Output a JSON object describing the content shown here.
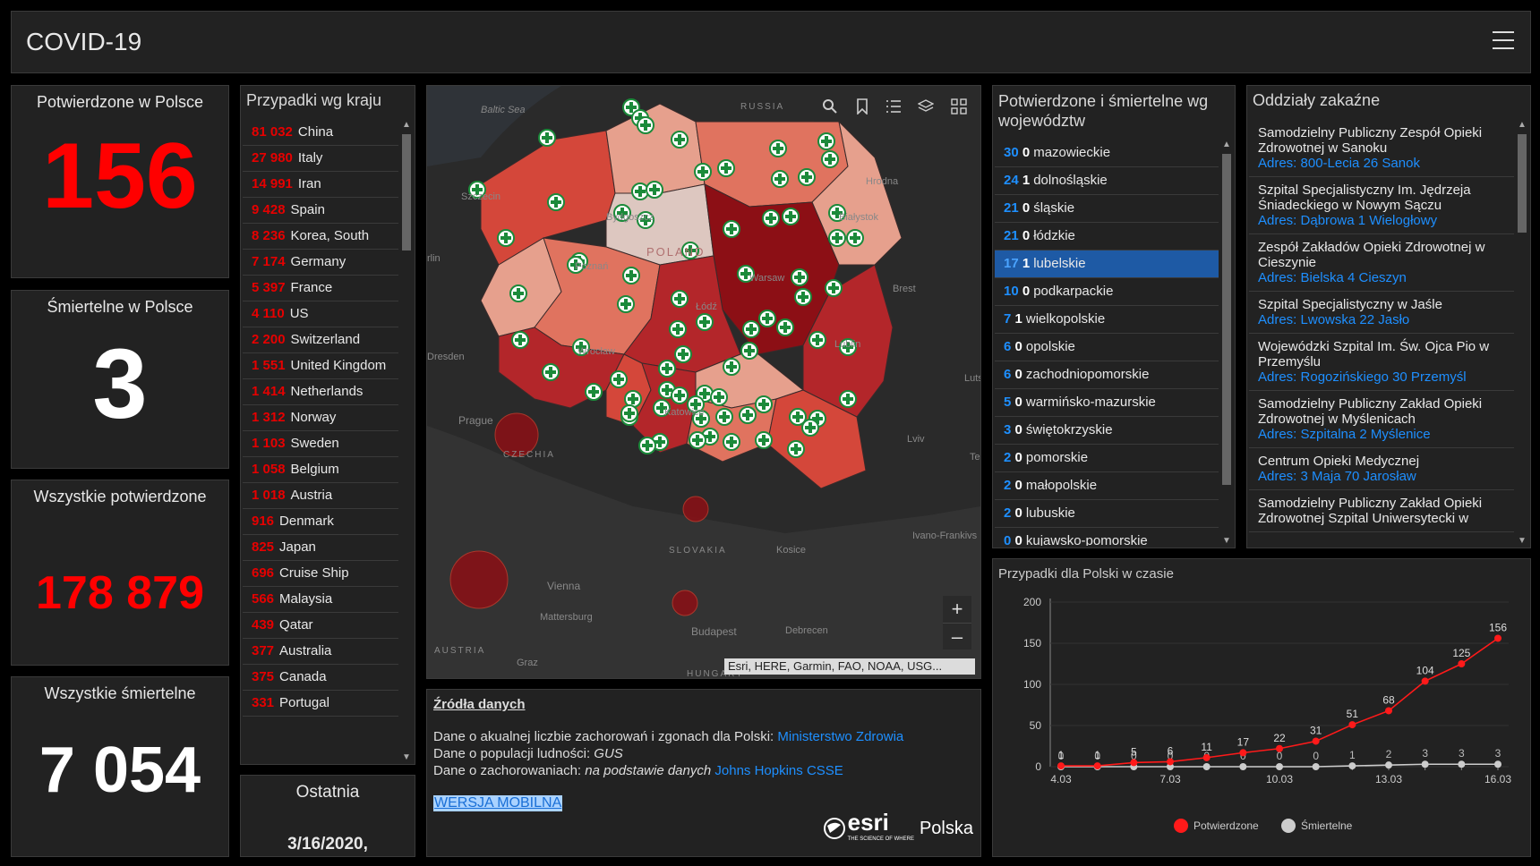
{
  "app": {
    "title": "COVID-19"
  },
  "kpis": {
    "confirmed_pl": {
      "label": "Potwierdzone w Polsce",
      "value": "156"
    },
    "deaths_pl": {
      "label": "Śmiertelne w Polsce",
      "value": "3"
    },
    "confirmed_all": {
      "label": "Wszystkie potwierdzone",
      "value": "178 879"
    },
    "deaths_all": {
      "label": "Wszystkie śmiertelne",
      "value": "7 054"
    },
    "last": {
      "label": "Ostatnia",
      "value": "3/16/2020,"
    }
  },
  "countries": {
    "title": "Przypadki wg kraju",
    "items": [
      {
        "num": "81 032",
        "name": "China"
      },
      {
        "num": "27 980",
        "name": "Italy"
      },
      {
        "num": "14 991",
        "name": "Iran"
      },
      {
        "num": "9 428",
        "name": "Spain"
      },
      {
        "num": "8 236",
        "name": "Korea, South"
      },
      {
        "num": "7 174",
        "name": "Germany"
      },
      {
        "num": "5 397",
        "name": "France"
      },
      {
        "num": "4 110",
        "name": "US"
      },
      {
        "num": "2 200",
        "name": "Switzerland"
      },
      {
        "num": "1 551",
        "name": "United Kingdom"
      },
      {
        "num": "1 414",
        "name": "Netherlands"
      },
      {
        "num": "1 312",
        "name": "Norway"
      },
      {
        "num": "1 103",
        "name": "Sweden"
      },
      {
        "num": "1 058",
        "name": "Belgium"
      },
      {
        "num": "1 018",
        "name": "Austria"
      },
      {
        "num": "916",
        "name": "Denmark"
      },
      {
        "num": "825",
        "name": "Japan"
      },
      {
        "num": "696",
        "name": "Cruise Ship"
      },
      {
        "num": "566",
        "name": "Malaysia"
      },
      {
        "num": "439",
        "name": "Qatar"
      },
      {
        "num": "377",
        "name": "Australia"
      },
      {
        "num": "375",
        "name": "Canada"
      },
      {
        "num": "331",
        "name": "Portugal"
      }
    ]
  },
  "map": {
    "labels": {
      "baltic": "Baltic Sea",
      "russia": "RUSSIA",
      "szczecin": "Szczecin",
      "berlin": "rlin",
      "bydgoszcz": "Bydgoszcz",
      "poznan": "Poznań",
      "poland": "POLAND",
      "warsaw": "Warsaw",
      "grodno": "Hrodna",
      "bialystok": "Białystok",
      "brest": "Brest",
      "dresden": "Dresden",
      "wroclaw": "Wrocław",
      "lodz": "Łódź",
      "lublin": "Lublin",
      "lutsk": "Luts",
      "prague": "Prague",
      "czechia": "CZECHIA",
      "katowice": "Katowice",
      "lviv": "Lviv",
      "ternopil": "Te",
      "ivano": "Ivano-Frankivs",
      "slovakia": "SLOVAKIA",
      "kosice": "Kosice",
      "vienna": "Vienna",
      "mattersburg": "Mattersburg",
      "budapest": "Budapest",
      "debrecen": "Debrecen",
      "austria": "AUSTRIA",
      "graz": "Graz",
      "hungary": "HUNGARY"
    },
    "attribution": "Esri, HERE, Garmin, FAO, NOAA, USG...",
    "toolbar": [
      "search-icon",
      "bookmark-icon",
      "list-icon",
      "layers-icon",
      "qr-grid-icon"
    ],
    "zoom_in": "+",
    "zoom_out": "–",
    "colors": {
      "darkest": "#8c0f15",
      "dark": "#b3262a",
      "mid": "#d4473a",
      "light": "#e0735f",
      "lighter": "#e6a08d",
      "lightest": "#ddc7c0"
    }
  },
  "sources": {
    "title": "Źródła danych",
    "line1_prefix": "Dane o akualnej liczbie zachorowań i zgonach dla Polski: ",
    "line1_link": "Ministerstwo Zdrowia",
    "line2_prefix": "Dane o populacji ludności: ",
    "line2_em": "GUS",
    "line3_prefix": "Dane o zachorowaniach: ",
    "line3_em": "na podstawie danych ",
    "line3_link": "Johns Hopkins CSSE",
    "mobile": "WERSJA MOBILNA",
    "logo_text": "esri",
    "logo_sub": "THE SCIENCE OF WHERE",
    "logo_country": "Polska"
  },
  "voivodeships": {
    "title": "Potwierdzone i śmiertelne wg województw",
    "items": [
      {
        "c": "30",
        "d": "0",
        "name": "mazowieckie"
      },
      {
        "c": "24",
        "d": "1",
        "name": "dolnośląskie"
      },
      {
        "c": "21",
        "d": "0",
        "name": "śląskie"
      },
      {
        "c": "21",
        "d": "0",
        "name": "łódzkie"
      },
      {
        "c": "17",
        "d": "1",
        "name": "lubelskie"
      },
      {
        "c": "10",
        "d": "0",
        "name": "podkarpackie"
      },
      {
        "c": "7",
        "d": "1",
        "name": "wielkopolskie"
      },
      {
        "c": "6",
        "d": "0",
        "name": "opolskie"
      },
      {
        "c": "6",
        "d": "0",
        "name": "zachodniopomorskie"
      },
      {
        "c": "5",
        "d": "0",
        "name": "warmińsko-mazurskie"
      },
      {
        "c": "3",
        "d": "0",
        "name": "świętokrzyskie"
      },
      {
        "c": "2",
        "d": "0",
        "name": "pomorskie"
      },
      {
        "c": "2",
        "d": "0",
        "name": "małopolskie"
      },
      {
        "c": "2",
        "d": "0",
        "name": "lubuskie"
      },
      {
        "c": "0",
        "d": "0",
        "name": "kujawsko-pomorskie"
      }
    ]
  },
  "hospitals": {
    "title": "Oddziały zakaźne",
    "items": [
      {
        "name": "Samodzielny Publiczny Zespół Opieki Zdrowotnej w Sanoku",
        "addr": "Adres: 800-Lecia 26 Sanok"
      },
      {
        "name": "Szpital Specjalistyczny Im. Jędrzeja Śniadeckiego w Nowym Sączu",
        "addr": "Adres: Dąbrowa 1 Wielogłowy"
      },
      {
        "name": "Zespół Zakładów Opieki Zdrowotnej w Cieszynie",
        "addr": "Adres: Bielska 4 Cieszyn"
      },
      {
        "name": "Szpital Specjalistyczny w Jaśle",
        "addr": "Adres: Lwowska 22 Jasło"
      },
      {
        "name": "Wojewódzki Szpital Im. Św. Ojca Pio w Przemyślu",
        "addr": "Adres: Rogozińskiego 30 Przemyśl"
      },
      {
        "name": "Samodzielny Publiczny Zakład Opieki Zdrowotnej w Myślenicach",
        "addr": "Adres: Szpitalna 2 Myślenice"
      },
      {
        "name": "Centrum Opieki Medycznej",
        "addr": "Adres: 3 Maja 70 Jarosław"
      },
      {
        "name": "Samodzielny Publiczny Zakład Opieki Zdrowotnej Szpital Uniwersytecki w",
        "addr": ""
      }
    ]
  },
  "chart_data": {
    "type": "line",
    "title": "Przypadki dla Polski w czasie",
    "x": [
      "4.03",
      "5.03",
      "6.03",
      "7.03",
      "8.03",
      "9.03",
      "10.03",
      "11.03",
      "12.03",
      "13.03",
      "14.03",
      "15.03",
      "16.03"
    ],
    "xticks": [
      "4.03",
      "7.03",
      "10.03",
      "13.03",
      "16.03"
    ],
    "ylim": [
      0,
      200
    ],
    "yticks": [
      0,
      50,
      100,
      150,
      200
    ],
    "series": [
      {
        "name": "Potwierdzone",
        "color": "#ff1a1a",
        "values": [
          1,
          1,
          5,
          6,
          11,
          17,
          22,
          31,
          51,
          68,
          104,
          125,
          156
        ]
      },
      {
        "name": "Śmiertelne",
        "color": "#cccccc",
        "values": [
          0,
          0,
          0,
          0,
          0,
          0,
          0,
          0,
          1,
          2,
          3,
          3,
          3
        ]
      }
    ],
    "legend": "bottom"
  }
}
